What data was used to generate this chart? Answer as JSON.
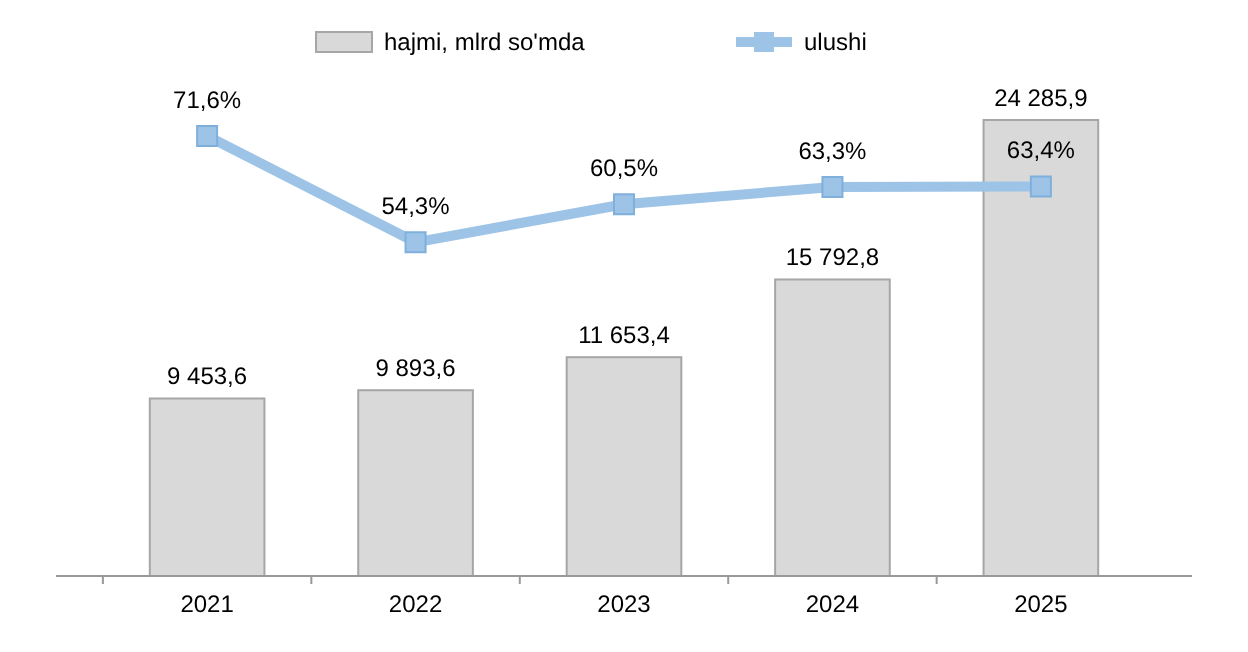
{
  "chart_data": {
    "type": "bar",
    "categories": [
      "2021",
      "2022",
      "2023",
      "2024",
      "2025"
    ],
    "series": [
      {
        "name": "hajmi, mlrd so'mda",
        "color": "#d9d9d9",
        "values": [
          9453.6,
          9893.6,
          11653.4,
          15792.8,
          24285.9
        ],
        "value_labels": [
          "9 453,6",
          "9 893,6",
          "11 653,4",
          "15 792,8",
          "24 285,9"
        ]
      },
      {
        "name": "ulushi",
        "type": "line",
        "axis": "y2",
        "color": "#9dc3e6",
        "values": [
          71.6,
          54.3,
          60.5,
          63.3,
          63.4
        ],
        "value_labels": [
          "71,6%",
          "54,3%",
          "60,5%",
          "63,3%",
          "63,4%"
        ]
      }
    ],
    "legend": "top",
    "marker": "square"
  }
}
